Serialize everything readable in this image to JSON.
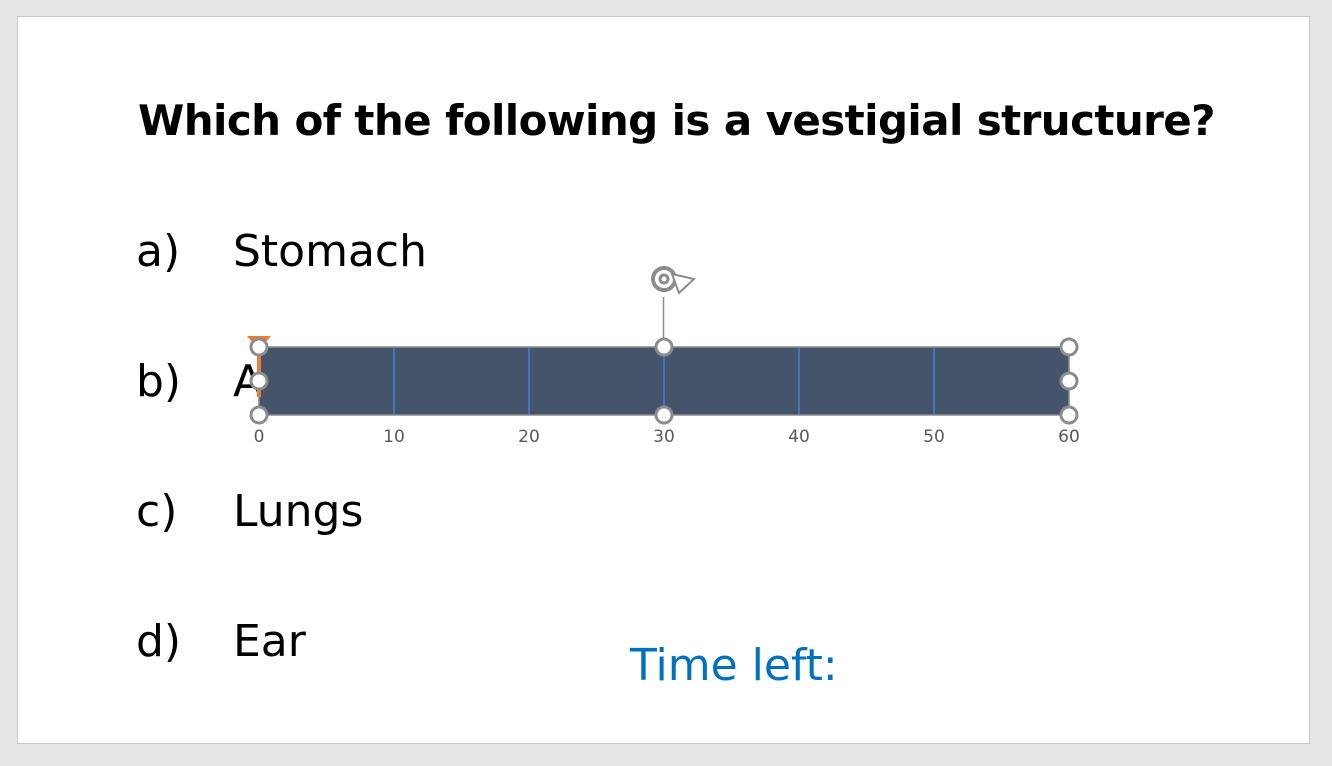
{
  "question": "Which of the following is a vestigial structure?",
  "options": [
    {
      "letter": "a)",
      "text": "Stomach"
    },
    {
      "letter": "b)",
      "text": "A"
    },
    {
      "letter": "c)",
      "text": "Lungs"
    },
    {
      "letter": "d)",
      "text": "Ear"
    }
  ],
  "timer_label": "Time left:",
  "timeline": {
    "min": 0,
    "max": 60,
    "ticks": [
      "0",
      "10",
      "20",
      "30",
      "40",
      "50",
      "60"
    ],
    "bar_color": "#44546a",
    "tick_line_color": "#4472c4",
    "marker_color": "#ed7d31",
    "marker_value": 0
  }
}
